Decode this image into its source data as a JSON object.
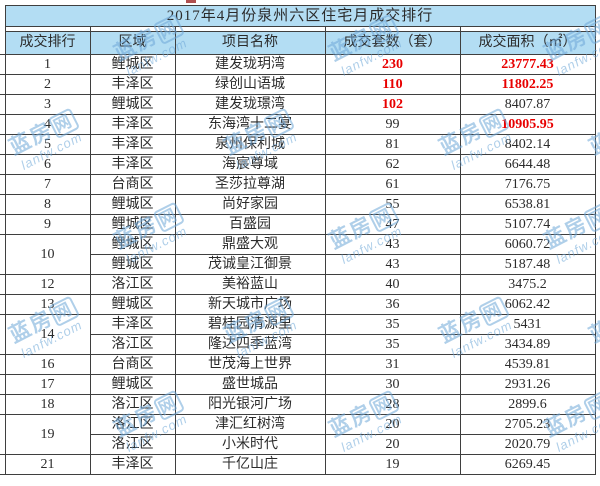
{
  "table": {
    "title": "2017年4月份泉州六区住宅月成交排行",
    "columns": [
      "成交排行",
      "区域",
      "项目名称",
      "成交套数（套）",
      "成交面积（㎡）"
    ],
    "rows": [
      {
        "rank": "1",
        "district": "鲤城区",
        "name": "建发珑玥湾",
        "units": "230",
        "area": "23777.43"
      },
      {
        "rank": "2",
        "district": "丰泽区",
        "name": "绿创山语城",
        "units": "110",
        "area": "11802.25"
      },
      {
        "rank": "3",
        "district": "鲤城区",
        "name": "建发珑璟湾",
        "units": "102",
        "area": "8407.87"
      },
      {
        "rank": "4",
        "district": "丰泽区",
        "name": "东海湾十二宴",
        "units": "99",
        "area": "10905.95"
      },
      {
        "rank": "5",
        "district": "丰泽区",
        "name": "泉州保利城",
        "units": "81",
        "area": "8402.14"
      },
      {
        "rank": "6",
        "district": "丰泽区",
        "name": "海宸尊域",
        "units": "62",
        "area": "6644.48"
      },
      {
        "rank": "7",
        "district": "台商区",
        "name": "圣莎拉尊湖",
        "units": "61",
        "area": "7176.75"
      },
      {
        "rank": "8",
        "district": "鲤城区",
        "name": "尚好家园",
        "units": "55",
        "area": "6538.81"
      },
      {
        "rank": "9",
        "district": "鲤城区",
        "name": "百盛园",
        "units": "47",
        "area": "5107.74"
      },
      {
        "rank": "10",
        "district": "鲤城区",
        "name": "鼎盛大观",
        "units": "43",
        "area": "6060.72"
      },
      {
        "rank": "",
        "district": "鲤城区",
        "name": "茂诚皇江御景",
        "units": "43",
        "area": "5187.48"
      },
      {
        "rank": "12",
        "district": "洛江区",
        "name": "美裕蓝山",
        "units": "40",
        "area": "3475.2"
      },
      {
        "rank": "13",
        "district": "鲤城区",
        "name": "新天城市广场",
        "units": "36",
        "area": "6062.42"
      },
      {
        "rank": "14",
        "district": "丰泽区",
        "name": "碧桂园清源里",
        "units": "35",
        "area": "5431"
      },
      {
        "rank": "",
        "district": "洛江区",
        "name": "隆达四季蓝湾",
        "units": "35",
        "area": "3434.89"
      },
      {
        "rank": "16",
        "district": "台商区",
        "name": "世茂海上世界",
        "units": "31",
        "area": "4539.81"
      },
      {
        "rank": "17",
        "district": "鲤城区",
        "name": "盛世城品",
        "units": "30",
        "area": "2931.26"
      },
      {
        "rank": "18",
        "district": "洛江区",
        "name": "阳光银河广场",
        "units": "28",
        "area": "2899.6"
      },
      {
        "rank": "19",
        "district": "洛江区",
        "name": "津汇红树湾",
        "units": "20",
        "area": "2705.23"
      },
      {
        "rank": "",
        "district": "洛江区",
        "name": "小米时代",
        "units": "20",
        "area": "2020.79"
      },
      {
        "rank": "21",
        "district": "丰泽区",
        "name": "千亿山庄",
        "units": "19",
        "area": "6269.45"
      }
    ]
  },
  "watermark": {
    "brand_prefix": "蓝房",
    "brand_net": "网",
    "domain": "lanfw.com"
  },
  "colors": {
    "header_bg": "#b3ddf3",
    "highlight_red": "#e80000",
    "border": "#3f3f3f",
    "watermark_blue": "#6fa8d8"
  }
}
